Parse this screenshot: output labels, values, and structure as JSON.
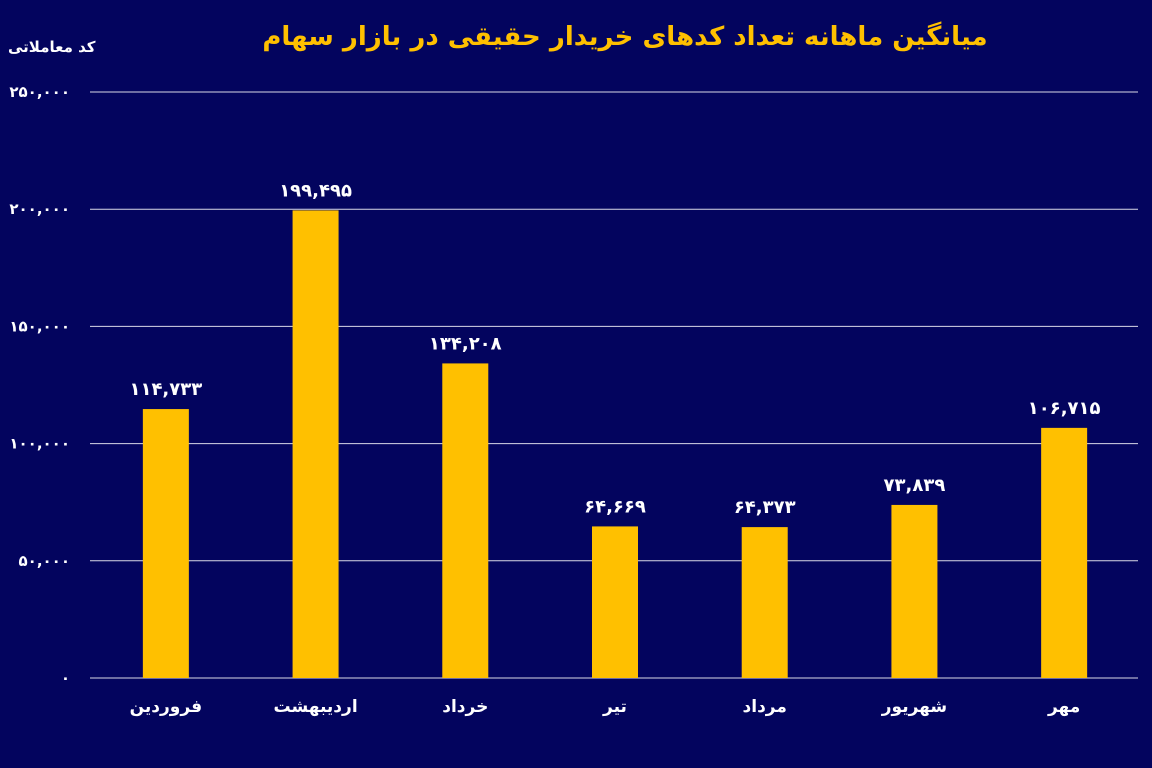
{
  "chart_data": {
    "type": "bar",
    "title": "میانگین ماهانه تعداد کدهای خریدار حقیقی در بازار سهام",
    "ylabel": "کد معاملاتی",
    "xlabel": "",
    "categories": [
      "فروردین",
      "اردیبهشت",
      "خرداد",
      "تیر",
      "مرداد",
      "شهریور",
      "مهر"
    ],
    "values": [
      114733,
      199495,
      134208,
      64669,
      64373,
      73839,
      106715
    ],
    "value_labels": [
      "۱۱۴,۷۳۳",
      "۱۹۹,۴۹۵",
      "۱۳۴,۲۰۸",
      "۶۴,۶۶۹",
      "۶۴,۳۷۳",
      "۷۳,۸۳۹",
      "۱۰۶,۷۱۵"
    ],
    "ylim": [
      0,
      250000
    ],
    "yticks": [
      0,
      50000,
      100000,
      150000,
      200000,
      250000
    ],
    "ytick_labels": [
      "۰",
      "۵۰,۰۰۰",
      "۱۰۰,۰۰۰",
      "۱۵۰,۰۰۰",
      "۲۰۰,۰۰۰",
      "۲۵۰,۰۰۰"
    ],
    "grid": true,
    "legend": "none",
    "colors": {
      "background": "#03045e",
      "bar": "#ffc000",
      "text": "#ffffff",
      "title": "#ffc000",
      "grid": "#ffffff"
    }
  }
}
